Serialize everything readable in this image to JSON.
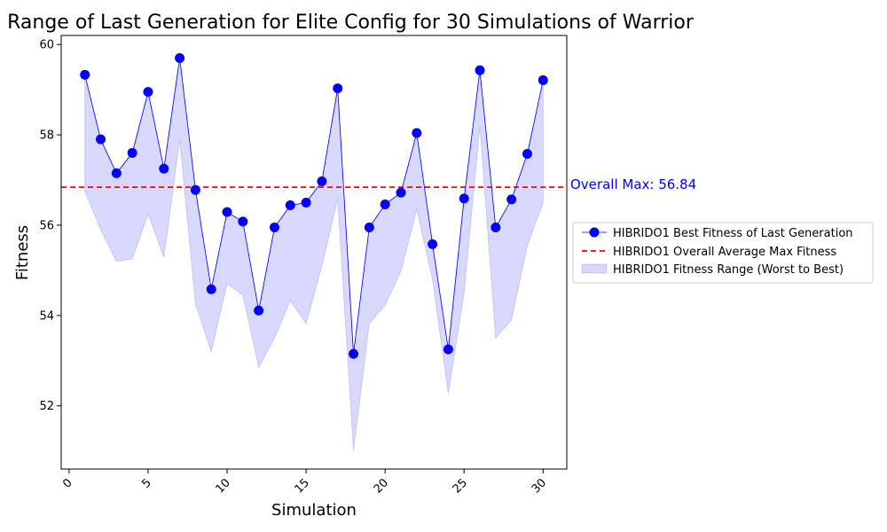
{
  "chart_data": {
    "type": "line",
    "title": "Range of Last Generation for Elite Config for 30 Simulations of Warrior",
    "xlabel": "Simulation",
    "ylabel": "Fitness",
    "xlim": [
      -0.5,
      31.5
    ],
    "ylim": [
      50.6,
      60.2
    ],
    "xticks": [
      0,
      5,
      10,
      15,
      20,
      25,
      30
    ],
    "yticks": [
      52,
      54,
      56,
      58,
      60
    ],
    "x": [
      1,
      2,
      3,
      4,
      5,
      6,
      7,
      8,
      9,
      10,
      11,
      12,
      13,
      14,
      15,
      16,
      17,
      18,
      19,
      20,
      21,
      22,
      23,
      24,
      25,
      26,
      27,
      28,
      29,
      30
    ],
    "series": [
      {
        "name": "HIBRIDO1 Best Fitness of Last Generation",
        "color": "#0000ff",
        "values": [
          59.33,
          57.9,
          57.15,
          57.6,
          58.95,
          57.25,
          59.7,
          56.78,
          54.58,
          56.29,
          56.08,
          54.11,
          55.95,
          56.44,
          56.5,
          56.97,
          59.03,
          53.15,
          55.95,
          56.46,
          56.72,
          58.04,
          55.58,
          53.25,
          56.59,
          59.43,
          55.95,
          56.57,
          57.58,
          59.21
        ]
      },
      {
        "name": "HIBRIDO1 Overall Average Max Fitness",
        "color": "#ff0000",
        "value": 56.84
      },
      {
        "name": "HIBRIDO1 Fitness Range (Worst to Best)",
        "color": "#0000ff",
        "worst": [
          56.75,
          55.9,
          55.2,
          55.25,
          56.25,
          55.28,
          57.9,
          54.25,
          53.2,
          54.7,
          54.45,
          52.85,
          53.5,
          54.33,
          53.82,
          55.1,
          56.58,
          51.0,
          53.82,
          54.23,
          54.98,
          56.35,
          54.8,
          52.27,
          54.5,
          58.2,
          53.5,
          53.9,
          55.55,
          56.5
        ],
        "best": [
          59.33,
          57.9,
          57.15,
          57.6,
          58.95,
          57.25,
          59.7,
          56.78,
          54.58,
          56.29,
          56.08,
          54.11,
          55.95,
          56.44,
          56.5,
          56.97,
          59.03,
          53.15,
          55.95,
          56.46,
          56.72,
          58.04,
          55.58,
          53.25,
          56.59,
          59.43,
          55.95,
          56.57,
          57.58,
          59.21
        ]
      }
    ],
    "annotation": "Overall Max: 56.84",
    "annotation_color": "#0000ff",
    "legend_placement": "right",
    "grid": false
  }
}
